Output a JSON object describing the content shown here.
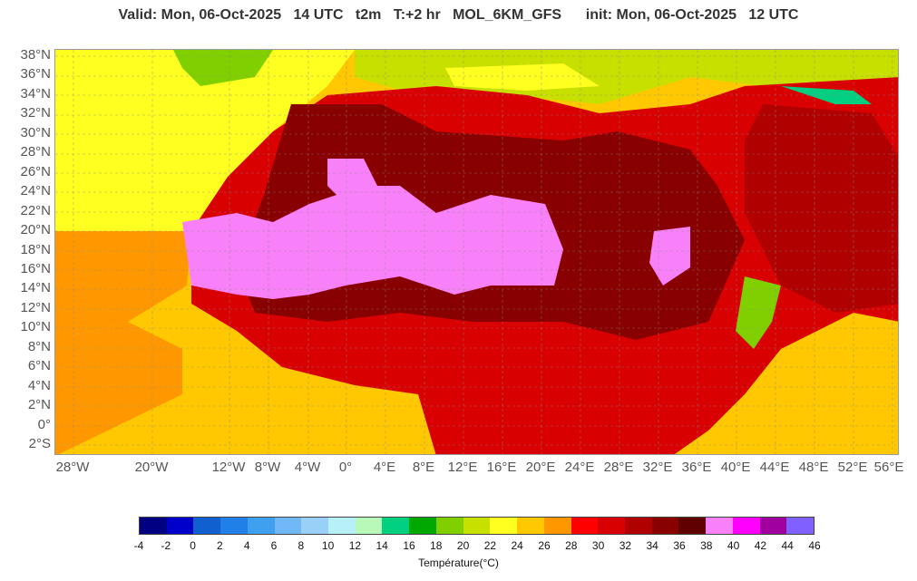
{
  "header": {
    "title": "Valid: Mon, 06-Oct-2025   14 UTC   t2m   T:+2 hr   MOL_6KM_GFS      init: Mon, 06-Oct-2025   12 UTC"
  },
  "map": {
    "lat_labels": [
      "38°N",
      "36°N",
      "34°N",
      "32°N",
      "30°N",
      "28°N",
      "26°N",
      "24°N",
      "22°N",
      "20°N",
      "18°N",
      "16°N",
      "14°N",
      "12°N",
      "10°N",
      "8°N",
      "6°N",
      "4°N",
      "2°N",
      "0°",
      "2°S"
    ],
    "lon_labels": [
      "28°W",
      "20°W",
      "12°W",
      "8°W",
      "4°W",
      "0°",
      "4°E",
      "8°E",
      "12°E",
      "16°E",
      "20°E",
      "24°E",
      "28°E",
      "32°E",
      "36°E",
      "40°E",
      "44°E",
      "48°E",
      "52°E",
      "56°E"
    ]
  },
  "colorbar": {
    "ticks": [
      "-4",
      "-2",
      "0",
      "2",
      "4",
      "6",
      "8",
      "10",
      "12",
      "14",
      "16",
      "18",
      "20",
      "22",
      "24",
      "26",
      "28",
      "30",
      "32",
      "34",
      "36",
      "38",
      "40",
      "42",
      "44",
      "46"
    ],
    "colors": [
      "#000080",
      "#0000c8",
      "#1060d0",
      "#2080e8",
      "#40a0f0",
      "#70b8f8",
      "#98d0f8",
      "#b8f0f8",
      "#b8f8b8",
      "#00d080",
      "#00a800",
      "#80d000",
      "#c8e000",
      "#ffff20",
      "#ffc800",
      "#ff9800",
      "#ff0000",
      "#d80000",
      "#b00000",
      "#880000",
      "#600000",
      "#f880f8",
      "#ff00ff",
      "#a000a0",
      "#8060ff"
    ],
    "unit_label": "Température(°C)"
  }
}
